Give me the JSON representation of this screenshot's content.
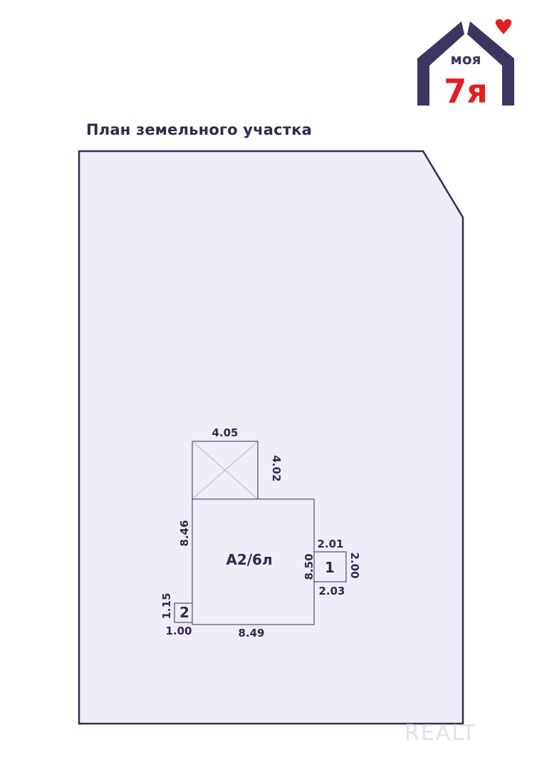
{
  "logo": {
    "text_top": "моя",
    "text_bottom": "7я",
    "colors": {
      "house": "#3d3561",
      "accent": "#e31e24"
    }
  },
  "title": "План земельного участка",
  "plan": {
    "main_building_label": "А2/6л",
    "annex_1_label": "1",
    "annex_2_label": "2",
    "dimensions": {
      "crossed_top": "4.05",
      "crossed_right": "4.02",
      "main_left": "8.46",
      "main_right": "8.50",
      "main_bottom": "8.49",
      "annex1_top": "2.01",
      "annex1_bottom": "2.03",
      "annex1_right": "2.00",
      "annex2_left": "1.15",
      "annex2_bottom": "1.00"
    },
    "colors": {
      "fill": "#efedf8",
      "stroke": "#3a2b4c"
    }
  },
  "watermark": "REALT"
}
